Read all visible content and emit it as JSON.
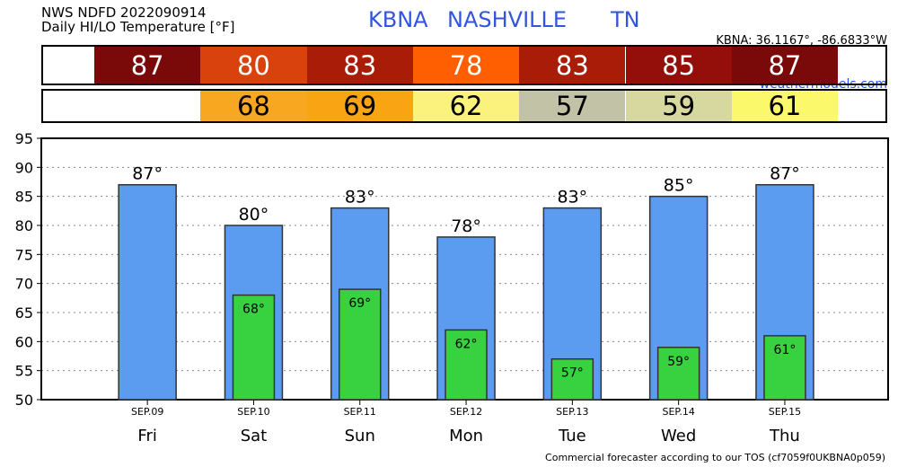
{
  "header": {
    "line1": "NWS NDFD 2022090914",
    "line2": "Daily HI/LO Temperature [°F]",
    "station_code": "KBNA",
    "station_name": "NASHVILLE",
    "state": "TN",
    "coords": "KBNA: 36.1167°, -86.6833°W",
    "site": "weathermodels.com"
  },
  "footer": "Commercial forecaster according to our TOS (cf7059f0UKBNA0p059)",
  "colors": {
    "hi_bar": "#5b9cf0",
    "lo_bar": "#38d140",
    "hi_cells": [
      "#7a0a0a",
      "#d9420d",
      "#a81c08",
      "#ff5f00",
      "#a81c08",
      "#950f0a",
      "#7a0a0a"
    ],
    "lo_cells": [
      null,
      "#f7a820",
      "#f9a412",
      "#fbf17d",
      "#c2c2a6",
      "#d7d8a0",
      "#fcf86c"
    ]
  },
  "chart_data": {
    "type": "bar",
    "categories": [
      "Fri",
      "Sat",
      "Sun",
      "Mon",
      "Tue",
      "Wed",
      "Thu"
    ],
    "dates": [
      "SEP.09",
      "SEP.10",
      "SEP.11",
      "SEP.12",
      "SEP.13",
      "SEP.14",
      "SEP.15"
    ],
    "series": [
      {
        "name": "HI",
        "values": [
          87,
          80,
          83,
          78,
          83,
          85,
          87
        ]
      },
      {
        "name": "LO",
        "values": [
          null,
          68,
          69,
          62,
          57,
          59,
          61
        ]
      }
    ],
    "hi_labels": [
      "87°",
      "80°",
      "83°",
      "78°",
      "83°",
      "85°",
      "87°"
    ],
    "lo_labels": [
      "",
      "68°",
      "69°",
      "62°",
      "57°",
      "59°",
      "61°"
    ],
    "yticks": [
      "95",
      "90",
      "85",
      "80",
      "75",
      "70",
      "65",
      "60",
      "55",
      "50"
    ],
    "ylim": [
      50,
      95
    ],
    "grid": true
  }
}
